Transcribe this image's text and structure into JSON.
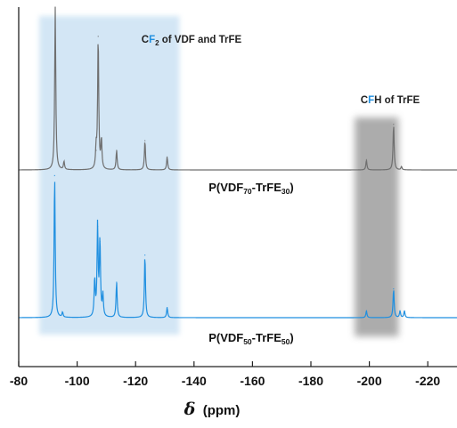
{
  "chart_data": {
    "type": "line",
    "title": "",
    "xlabel": "δ",
    "xlabel_unit": "(ppm)",
    "xlim": [
      -80,
      -230
    ],
    "ylabel": "",
    "y_axis_visible": false,
    "grid": false,
    "x_ticks": [
      -80,
      -100,
      -120,
      -140,
      -160,
      -180,
      -200,
      -220
    ],
    "x_tick_labels": [
      "-80",
      "-100",
      "-120",
      "-140",
      "-160",
      "-180",
      "-200",
      "-220"
    ],
    "regions": [
      {
        "label_parts": [
          "C",
          "F",
          "2",
          " of VDF and TrFE"
        ],
        "x_range": [
          -87,
          -135
        ],
        "color": "#cfe4f4"
      },
      {
        "label_parts": [
          "C",
          "F",
          "H of TrFE"
        ],
        "x_range": [
          -195,
          -210
        ],
        "color": "#9e9e9e"
      }
    ],
    "series": [
      {
        "name_parts": [
          "P(VDF",
          "70",
          "-TrFE",
          "30",
          ")"
        ],
        "color": "#6f6f6f",
        "peaks": [
          {
            "x": -92.5,
            "height": 1.0
          },
          {
            "x": -95.5,
            "height": 0.05
          },
          {
            "x": -106.5,
            "height": 0.12
          },
          {
            "x": -107.2,
            "height": 0.82
          },
          {
            "x": -108.3,
            "height": 0.18
          },
          {
            "x": -113.5,
            "height": 0.12
          },
          {
            "x": -123.2,
            "height": 0.18
          },
          {
            "x": -130.8,
            "height": 0.08
          },
          {
            "x": -199.0,
            "height": 0.06
          },
          {
            "x": -208.3,
            "height": 0.28
          },
          {
            "x": -211.0,
            "height": 0.02
          }
        ]
      },
      {
        "name_parts": [
          "P(VDF",
          "50",
          "-TrFE",
          "50",
          ")"
        ],
        "color": "#1f8fe0",
        "peaks": [
          {
            "x": -92.3,
            "height": 0.84
          },
          {
            "x": -95.0,
            "height": 0.03
          },
          {
            "x": -106.0,
            "height": 0.22
          },
          {
            "x": -107.0,
            "height": 0.54
          },
          {
            "x": -107.8,
            "height": 0.45
          },
          {
            "x": -108.8,
            "height": 0.13
          },
          {
            "x": -113.5,
            "height": 0.21
          },
          {
            "x": -123.2,
            "height": 0.37
          },
          {
            "x": -130.8,
            "height": 0.06
          },
          {
            "x": -199.0,
            "height": 0.04
          },
          {
            "x": -208.3,
            "height": 0.17
          },
          {
            "x": -210.5,
            "height": 0.04
          },
          {
            "x": -212.0,
            "height": 0.04
          }
        ]
      }
    ]
  }
}
